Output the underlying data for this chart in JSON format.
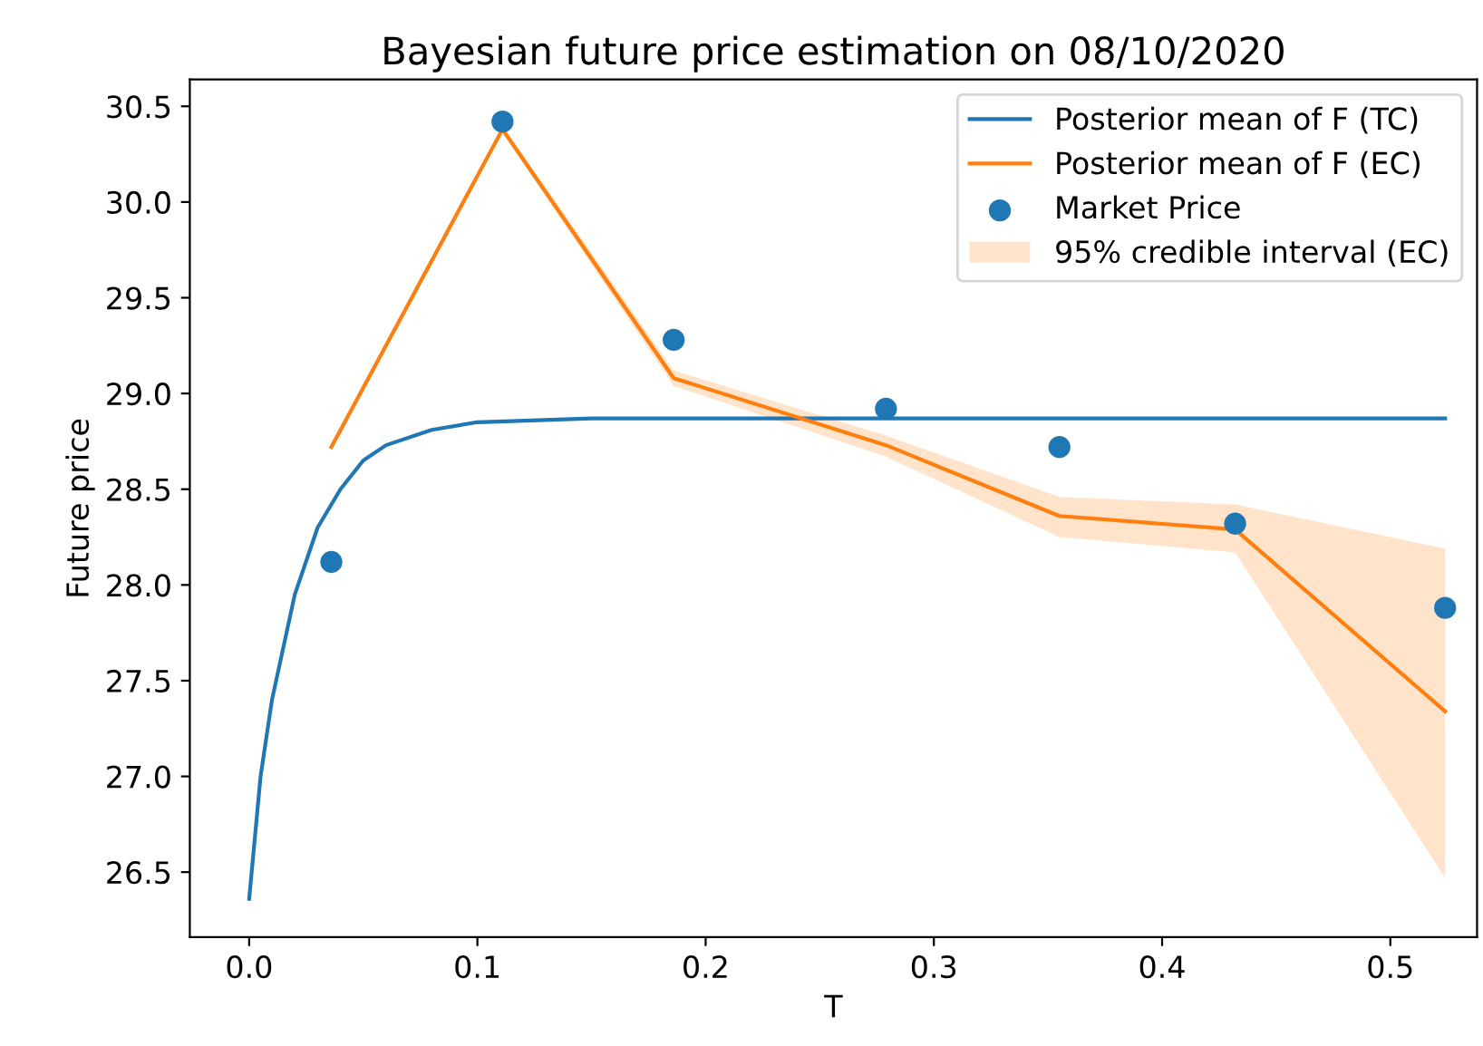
{
  "chart_data": {
    "type": "line",
    "title": "Bayesian future price estimation on 08/10/2020",
    "xlabel": "T",
    "ylabel": "Future price",
    "xlim": [
      -0.026,
      0.538
    ],
    "ylim": [
      26.16,
      30.64
    ],
    "xticks": [
      {
        "value": 0.0,
        "label": "0.0"
      },
      0.1,
      0.2,
      0.3,
      0.4,
      0.5
    ],
    "yticks": [
      26.5,
      {
        "value": 27.0,
        "label": "27.0"
      },
      27.5,
      {
        "value": 28.0,
        "label": "28.0"
      },
      28.5,
      {
        "value": 29.0,
        "label": "29.0"
      },
      29.5,
      {
        "value": 30.0,
        "label": "30.0"
      },
      30.5
    ],
    "grid": false,
    "legend": "top right",
    "series": [
      {
        "name": "Posterior mean of F (TC)",
        "color": "#1f77b4",
        "x": [
          0,
          0.005,
          0.01,
          0.02,
          0.03,
          0.04,
          0.05,
          0.06,
          0.08,
          0.1,
          0.15,
          0.524
        ],
        "values": [
          26.36,
          27.0,
          27.4,
          27.95,
          28.3,
          28.5,
          28.65,
          28.73,
          28.81,
          28.85,
          28.87,
          28.87
        ]
      },
      {
        "name": "Posterior mean of F (EC)",
        "color": "#ff7f0e",
        "x": [
          0.036,
          0.111,
          0.186,
          0.279,
          0.355,
          0.432,
          0.524
        ],
        "values": [
          28.72,
          30.38,
          29.08,
          28.73,
          28.36,
          28.29,
          27.34
        ],
        "lower": [
          28.7,
          30.36,
          29.04,
          28.67,
          28.25,
          28.17,
          26.47
        ],
        "upper": [
          28.74,
          30.4,
          29.12,
          28.78,
          28.46,
          28.42,
          28.19
        ]
      },
      {
        "name": "Market Price",
        "type": "scatter",
        "marker": "circle",
        "color": "#1f77b4",
        "x": [
          0.036,
          0.111,
          0.186,
          0.279,
          0.355,
          0.432,
          0.524
        ],
        "values": [
          28.12,
          30.42,
          29.28,
          28.92,
          28.72,
          28.32,
          27.88
        ]
      }
    ],
    "annotations": [
      "95% credible interval (EC)"
    ]
  }
}
